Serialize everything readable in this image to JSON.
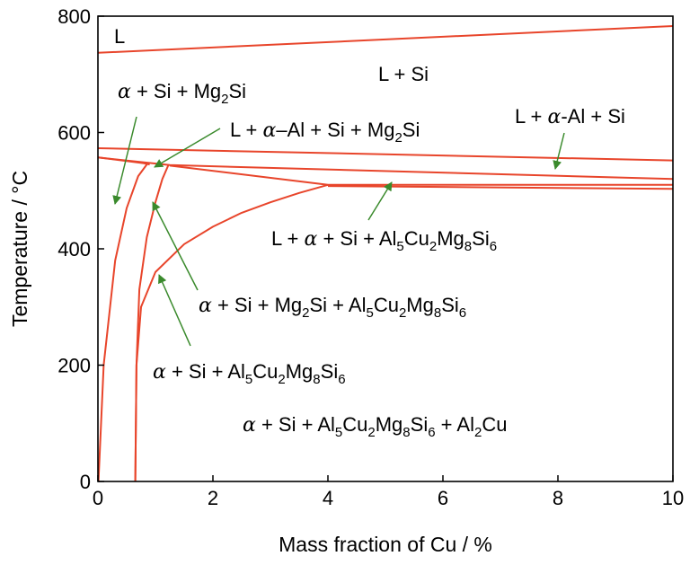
{
  "chart_data": {
    "type": "line",
    "title": "",
    "xlabel": "Mass fraction of Cu / %",
    "ylabel": "Temperature / °C",
    "xlim": [
      0,
      10
    ],
    "ylim": [
      0,
      800
    ],
    "xticks": [
      "0",
      "2",
      "4",
      "6",
      "8",
      "10"
    ],
    "yticks": [
      "0",
      "200",
      "400",
      "600",
      "800"
    ],
    "grid": false,
    "line_color": "#e8452b",
    "arrow_color": "#3a8a2c",
    "series": [
      {
        "x": [
          0,
          10
        ],
        "y": [
          737,
          783
        ]
      },
      {
        "x": [
          0,
          10
        ],
        "y": [
          573,
          552
        ]
      },
      {
        "x": [
          0,
          1.25,
          10
        ],
        "y": [
          557,
          544,
          520
        ]
      },
      {
        "x": [
          0,
          0.65,
          0.8,
          0.9
        ],
        "y": [
          557,
          549,
          547,
          545
        ]
      },
      {
        "x": [
          1.25,
          4,
          10
        ],
        "y": [
          543,
          510,
          510
        ]
      },
      {
        "x": [
          4,
          10
        ],
        "y": [
          508,
          503
        ]
      },
      {
        "x": [
          0.01,
          0.1,
          0.3,
          0.5,
          0.7,
          0.85
        ],
        "y": [
          0,
          200,
          380,
          470,
          525,
          545
        ]
      },
      {
        "x": [
          0.65,
          0.67,
          0.72,
          0.85,
          1.0,
          1.12,
          1.23
        ],
        "y": [
          0,
          200,
          330,
          420,
          480,
          520,
          545
        ]
      },
      {
        "x": [
          0.65,
          0.67,
          0.75,
          1.0,
          1.5,
          2.0,
          2.5,
          3.0,
          3.5,
          4.0
        ],
        "y": [
          0,
          200,
          300,
          360,
          408,
          438,
          462,
          480,
          496,
          510
        ]
      }
    ],
    "annotations": [
      {
        "id": "L",
        "text": "L"
      },
      {
        "id": "LSi",
        "text": "L + Si"
      },
      {
        "id": "aSiMg",
        "alpha": "α",
        "parts": [
          " + Si + Mg",
          "2",
          "Si"
        ]
      },
      {
        "id": "LaAlSiMg",
        "alpha": "α",
        "parts": [
          "L + ",
          "–Al + Si + Mg",
          "2",
          "Si"
        ]
      },
      {
        "id": "LaAlSi",
        "alpha": "α",
        "parts": [
          "L + ",
          "-Al + Si"
        ]
      },
      {
        "id": "LaSiQ",
        "alpha": "α",
        "parts": [
          "L + ",
          " + Si + Al",
          "5",
          "Cu",
          "2",
          "Mg",
          "8",
          "Si",
          "6"
        ]
      },
      {
        "id": "aSiMgQ",
        "alpha": "α",
        "parts": [
          " + Si + Mg",
          "2",
          "Si + Al",
          "5",
          "Cu",
          "2",
          "Mg",
          "8",
          "Si",
          "6"
        ]
      },
      {
        "id": "aSiQ",
        "alpha": "α",
        "parts": [
          " + Si + Al",
          "5",
          "Cu",
          "2",
          "Mg",
          "8",
          "Si",
          "6"
        ]
      },
      {
        "id": "aSiQAl2Cu",
        "alpha": "α",
        "parts": [
          " + Si + Al",
          "5",
          "Cu",
          "2",
          "Mg",
          "8",
          "Si",
          "6",
          " + Al",
          "2",
          "Cu"
        ]
      }
    ]
  }
}
